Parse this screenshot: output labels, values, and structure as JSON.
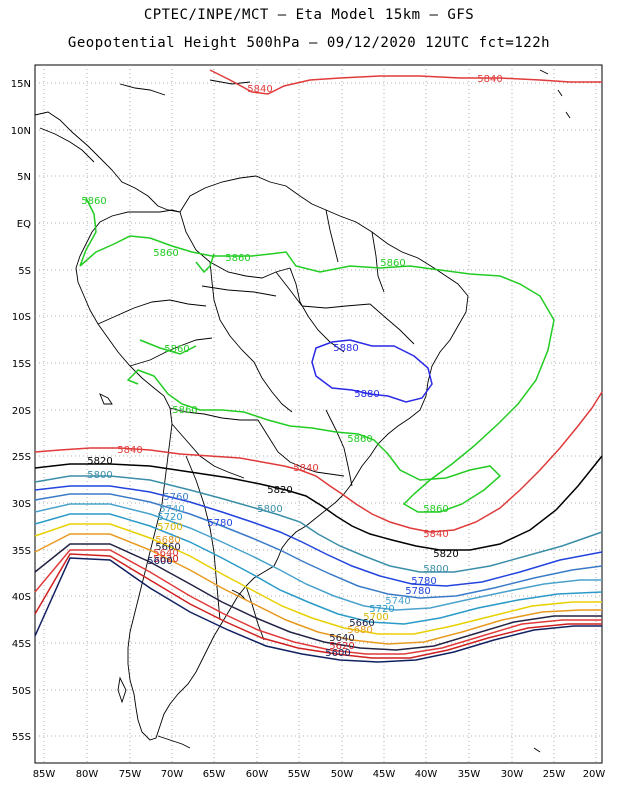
{
  "header": {
    "line1": "CPTEC/INPE/MCT —  Eta Model 15km — GFS",
    "line2": "Geopotential Height 500hPa — 09/12/2020 12UTC fct=122h"
  },
  "axes": {
    "lat_labels": [
      "15N",
      "10N",
      "5N",
      "EQ",
      "5S",
      "10S",
      "15S",
      "20S",
      "25S",
      "30S",
      "35S",
      "40S",
      "45S",
      "50S",
      "55S"
    ],
    "lon_labels": [
      "85W",
      "80W",
      "75W",
      "70W",
      "65W",
      "60W",
      "55W",
      "50W",
      "45W",
      "40W",
      "35W",
      "30W",
      "25W",
      "20W"
    ]
  },
  "contour_colors": {
    "5880": "#2a2ae6",
    "5860": "#22cc22",
    "5840": "#e03a3a",
    "5820": "#000000",
    "5800": "#3a8ea8",
    "5780": "#2244dd",
    "5760": "#3a7bc8",
    "5740": "#4aa2cc",
    "5720": "#2a9ac8",
    "5700": "#e8d000",
    "5680": "#e89a20",
    "5660": "#222244",
    "5640": "#e03a3a",
    "5620": "#d02020",
    "5600": "#102060"
  },
  "contour_labels": [
    {
      "id": "5840-top-a",
      "text": "5840",
      "level": "5840"
    },
    {
      "id": "5840-top-b",
      "text": "5840",
      "level": "5840"
    },
    {
      "id": "5860-a",
      "text": "5860",
      "level": "5860"
    },
    {
      "id": "5860-b",
      "text": "5860",
      "level": "5860"
    },
    {
      "id": "5860-c",
      "text": "5860",
      "level": "5860"
    },
    {
      "id": "5860-d",
      "text": "5860",
      "level": "5860"
    },
    {
      "id": "5860-e",
      "text": "5860",
      "level": "5860"
    },
    {
      "id": "5860-f",
      "text": "5860",
      "level": "5860"
    },
    {
      "id": "5860-g",
      "text": "5860",
      "level": "5860"
    },
    {
      "id": "5860-h",
      "text": "5860",
      "level": "5860"
    },
    {
      "id": "5880-a",
      "text": "5880",
      "level": "5880"
    },
    {
      "id": "5880-b",
      "text": "5880",
      "level": "5880"
    },
    {
      "id": "5840-a",
      "text": "5840",
      "level": "5840"
    },
    {
      "id": "5840-b",
      "text": "5840",
      "level": "5840"
    },
    {
      "id": "5840-c",
      "text": "5840",
      "level": "5840"
    },
    {
      "id": "5820-a",
      "text": "5820",
      "level": "5820"
    },
    {
      "id": "5820-b",
      "text": "5820",
      "level": "5820"
    },
    {
      "id": "5820-c",
      "text": "5820",
      "level": "5820"
    },
    {
      "id": "5800-a",
      "text": "5800",
      "level": "5800"
    },
    {
      "id": "5800-b",
      "text": "5800",
      "level": "5800"
    },
    {
      "id": "5800-c",
      "text": "5800",
      "level": "5800"
    },
    {
      "id": "5780-a",
      "text": "5780",
      "level": "5780"
    },
    {
      "id": "5780-b",
      "text": "5780",
      "level": "5780"
    },
    {
      "id": "5780-c",
      "text": "5780",
      "level": "5780"
    },
    {
      "id": "5760-a",
      "text": "5760",
      "level": "5760"
    },
    {
      "id": "5740-a",
      "text": "5740",
      "level": "5740"
    },
    {
      "id": "5740-b",
      "text": "5740",
      "level": "5740"
    },
    {
      "id": "5720-a",
      "text": "5720",
      "level": "5720"
    },
    {
      "id": "5720-b",
      "text": "5720",
      "level": "5720"
    },
    {
      "id": "5700-a",
      "text": "5700",
      "level": "5700"
    },
    {
      "id": "5700-b",
      "text": "5700",
      "level": "5700"
    },
    {
      "id": "5680-a",
      "text": "5680",
      "level": "5680"
    },
    {
      "id": "5680-b",
      "text": "5680",
      "level": "5680"
    },
    {
      "id": "5660-a",
      "text": "5660",
      "level": "5660"
    },
    {
      "id": "5660-b",
      "text": "5660",
      "level": "5660"
    },
    {
      "id": "5640-a",
      "text": "5640",
      "level": "5640"
    },
    {
      "id": "5640-b",
      "text": "5640",
      "level": "5640"
    },
    {
      "id": "5620-a",
      "text": "5620",
      "level": "5620"
    },
    {
      "id": "5620-b",
      "text": "5620",
      "level": "5620"
    },
    {
      "id": "5600-a",
      "text": "5600",
      "level": "5600"
    },
    {
      "id": "5600-b",
      "text": "5600",
      "level": "5600"
    }
  ]
}
